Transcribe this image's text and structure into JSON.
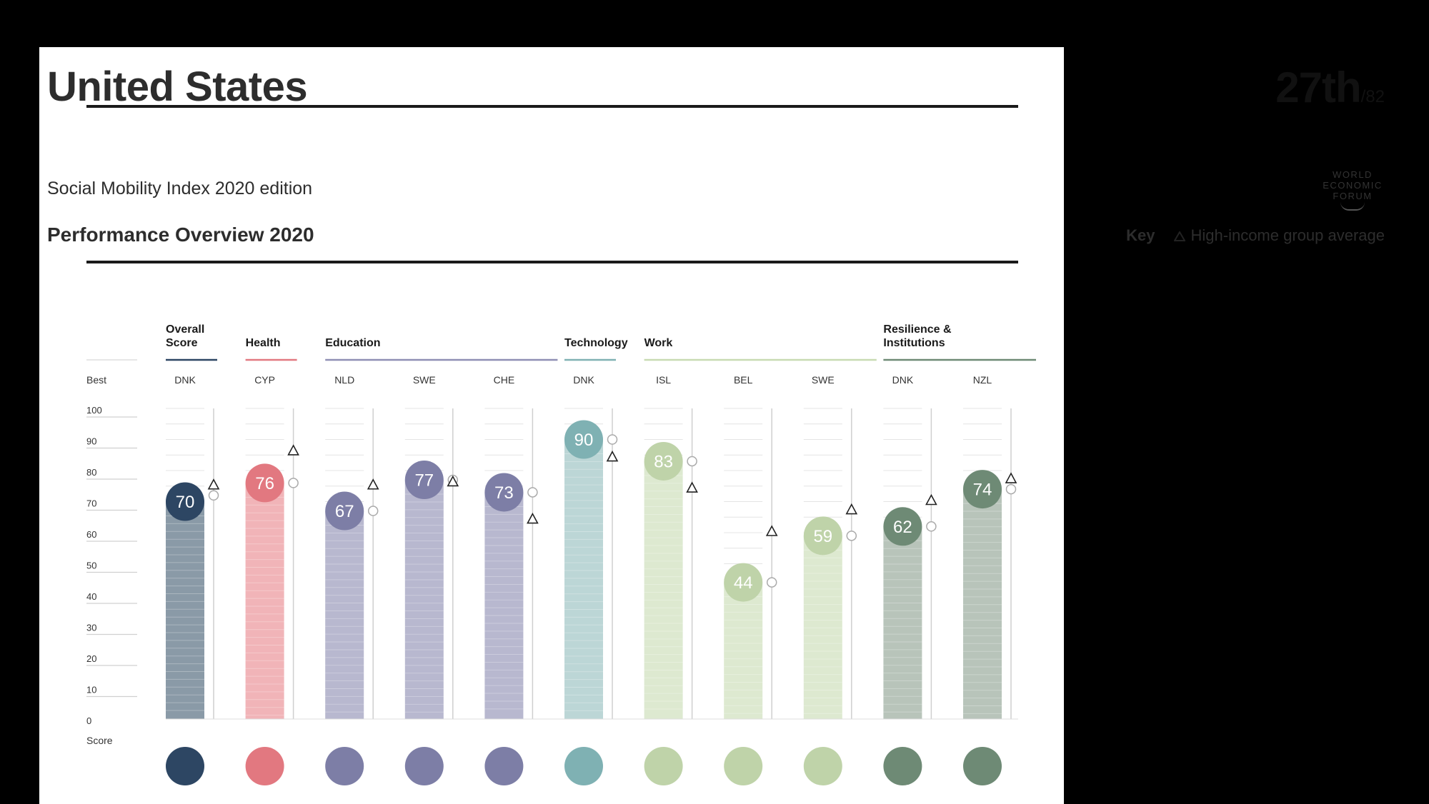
{
  "country": "United States",
  "rank": {
    "value": "27th",
    "total": "/82"
  },
  "edition": "Social Mobility Index 2020 edition",
  "logo_text": [
    "WORLD",
    "ECONOMIC",
    "FORUM"
  ],
  "overview_title": "Performance Overview 2020",
  "key": {
    "label": "Key",
    "text": "High-income group average"
  },
  "chart_data": {
    "type": "bar",
    "ylabel": "Score",
    "best_label": "Best",
    "ylim": [
      0,
      100
    ],
    "yticks": [
      0,
      10,
      20,
      30,
      40,
      50,
      60,
      70,
      80,
      90,
      100
    ],
    "groups": [
      {
        "name": "Overall\nScore",
        "color": "#2d4663"
      },
      {
        "name": "Health",
        "color": "#e27880"
      },
      {
        "name": "Education",
        "color": "#8f8fb4"
      },
      {
        "name": "Technology",
        "color": "#7fb1b3"
      },
      {
        "name": "Work",
        "color": "#c8dbb2"
      },
      {
        "name": "Resilience &\nInstitutions",
        "color": "#6e8a75"
      }
    ],
    "categories": [
      {
        "group": 0,
        "best": "DNK",
        "icon": "award-icon",
        "value": 70,
        "color": "#2d4663",
        "bar": "#8a9aa7",
        "best_score": 72,
        "average": 75
      },
      {
        "group": 1,
        "best": "CYP",
        "icon": "medical-cross-icon",
        "value": 76,
        "color": "#e27880",
        "bar": "#f1b4b8",
        "best_score": 76,
        "average": 86
      },
      {
        "group": 2,
        "best": "NLD",
        "icon": "graduation-cap-icon",
        "value": 67,
        "color": "#7d7ea6",
        "bar": "#b8b8cf",
        "best_score": 67,
        "average": 75
      },
      {
        "group": 2,
        "best": "SWE",
        "icon": "medal-icon",
        "value": 77,
        "color": "#7d7ea6",
        "bar": "#b8b8cf",
        "best_score": 77,
        "average": 76
      },
      {
        "group": 2,
        "best": "CHE",
        "icon": "head-icon",
        "value": 73,
        "color": "#7d7ea6",
        "bar": "#b8b8cf",
        "best_score": 73,
        "average": 64
      },
      {
        "group": 3,
        "best": "DNK",
        "icon": "network-icon",
        "value": 90,
        "color": "#7fb1b3",
        "bar": "#bcd6d6",
        "best_score": 90,
        "average": 84
      },
      {
        "group": 4,
        "best": "ISL",
        "icon": "wrench-icon",
        "value": 83,
        "color": "#bfd3a9",
        "bar": "#dde9d0",
        "best_score": 83,
        "average": 74
      },
      {
        "group": 4,
        "best": "BEL",
        "icon": "coins-icon",
        "value": 44,
        "color": "#bfd3a9",
        "bar": "#dde9d0",
        "best_score": 44,
        "average": 60
      },
      {
        "group": 4,
        "best": "SWE",
        "icon": "document-icon",
        "value": 59,
        "color": "#bfd3a9",
        "bar": "#dde9d0",
        "best_score": 59,
        "average": 67
      },
      {
        "group": 5,
        "best": "DNK",
        "icon": "hands-icon",
        "value": 62,
        "color": "#6e8a75",
        "bar": "#b8c4ba",
        "best_score": 62,
        "average": 70
      },
      {
        "group": 5,
        "best": "NZL",
        "icon": "institution-icon",
        "value": 74,
        "color": "#6e8a75",
        "bar": "#b8c4ba",
        "best_score": 74,
        "average": 77
      }
    ]
  }
}
